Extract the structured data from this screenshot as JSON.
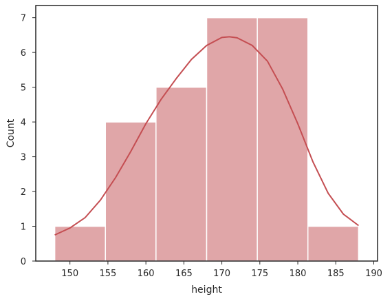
{
  "chart_data": {
    "type": "bar",
    "xlabel": "height",
    "ylabel": "Count",
    "xlim": [
      145.5,
      190.5
    ],
    "ylim": [
      0,
      7.35
    ],
    "xticks": [
      150,
      155,
      160,
      165,
      170,
      175,
      180,
      185,
      190
    ],
    "yticks": [
      0,
      1,
      2,
      3,
      4,
      5,
      6,
      7
    ],
    "bins": [
      {
        "start": 148.0,
        "end": 154.67,
        "count": 1
      },
      {
        "start": 154.67,
        "end": 161.33,
        "count": 4
      },
      {
        "start": 161.33,
        "end": 168.0,
        "count": 5
      },
      {
        "start": 168.0,
        "end": 174.67,
        "count": 7
      },
      {
        "start": 174.67,
        "end": 181.33,
        "count": 7
      },
      {
        "start": 181.33,
        "end": 188.0,
        "count": 1
      }
    ],
    "kde": {
      "x": [
        148,
        150,
        152,
        154,
        156,
        158,
        160,
        162,
        164,
        166,
        168,
        170,
        171,
        172,
        174,
        176,
        178,
        180,
        182,
        184,
        186,
        188
      ],
      "y": [
        0.75,
        0.95,
        1.25,
        1.75,
        2.4,
        3.15,
        3.95,
        4.65,
        5.25,
        5.8,
        6.2,
        6.43,
        6.45,
        6.42,
        6.2,
        5.75,
        4.95,
        3.95,
        2.85,
        1.95,
        1.35,
        1.02
      ]
    },
    "grid": false,
    "colors": {
      "bar_fill": "#e0a6a8",
      "bar_edge": "#ffffff",
      "kde_line": "#c44e52",
      "axes": "#262626"
    }
  }
}
